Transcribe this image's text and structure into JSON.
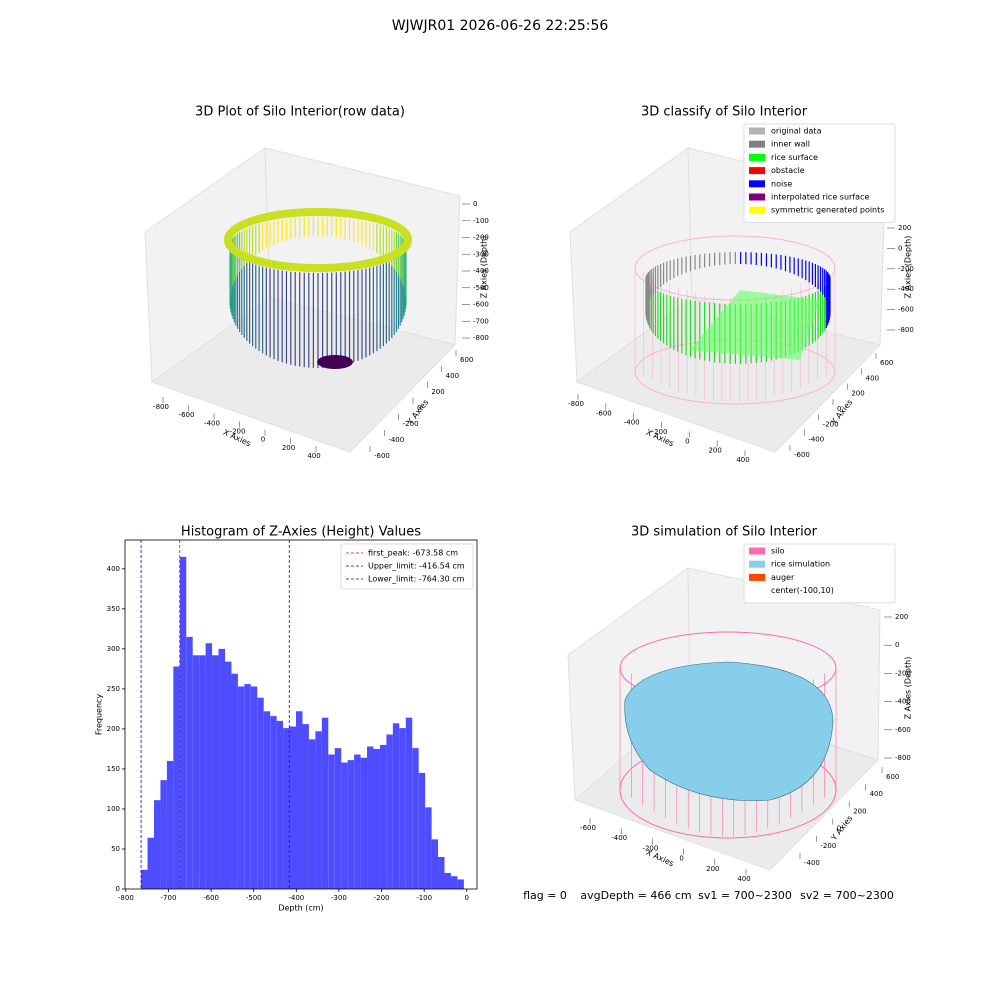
{
  "title": "WJWJR01 2026-06-26 22:25:56",
  "footer": [
    "flag = 0",
    "avgDepth = 466 cm",
    "sv1 = 700~2300",
    "sv2 = 700~2300"
  ],
  "chart_data": [
    {
      "type": "scatter3d",
      "title": "3D Plot of Silo Interior(row data)",
      "xlabel": "X Axies",
      "ylabel": "Y Axies",
      "zlabel": "Z Axies (Depth)",
      "xticks": [
        -800,
        -600,
        -400,
        -200,
        0,
        200,
        400
      ],
      "yticks": [
        -600,
        -400,
        -200,
        0,
        200,
        400,
        600
      ],
      "zticks": [
        0,
        -100,
        -200,
        -300,
        -400,
        -500,
        -600,
        -700,
        -800
      ]
    },
    {
      "type": "scatter3d",
      "title": "3D classify of Silo Interior",
      "xlabel": "X Axies",
      "ylabel": "Y Axies",
      "zlabel": "Z Axies (Depth)",
      "xticks": [
        -800,
        -600,
        -400,
        -200,
        0,
        200,
        400
      ],
      "yticks": [
        -600,
        -400,
        -200,
        0,
        200,
        400,
        600
      ],
      "zticks": [
        200,
        0,
        -200,
        -400,
        -600,
        -800
      ],
      "series": [
        {
          "name": "original data",
          "color": "#b3b3b3"
        },
        {
          "name": "inner wall",
          "color": "#808080"
        },
        {
          "name": "rice surface",
          "color": "#00ff00"
        },
        {
          "name": "obstacle",
          "color": "#ff0000"
        },
        {
          "name": "noise",
          "color": "#0000ff"
        },
        {
          "name": "interpolated rice surface",
          "color": "#800080"
        },
        {
          "name": "symmetric generated points",
          "color": "#ffff00"
        }
      ]
    },
    {
      "type": "histogram",
      "title": "Histogram of Z-Axies (Height) Values",
      "xlabel": "Depth (cm)",
      "ylabel": "Frequency",
      "color": "#4d4dff",
      "bins": [
        -764.3,
        -749.15,
        -734.0,
        -718.85,
        -703.7,
        -688.55,
        -673.4,
        -658.25,
        -643.1,
        -627.95,
        -612.8,
        -597.65,
        -582.5,
        -567.35,
        -552.2,
        -537.05,
        -521.9,
        -506.75,
        -491.6,
        -476.45,
        -461.3,
        -446.15,
        -431.0,
        -415.85,
        -400.7,
        -385.55,
        -370.4,
        -355.25,
        -340.1,
        -324.95,
        -309.8,
        -294.65,
        -279.5,
        -264.35,
        -249.2,
        -234.05,
        -218.9,
        -203.75,
        -188.6,
        -173.45,
        -158.3,
        -143.15,
        -128.0,
        -112.85,
        -97.7,
        -82.55,
        -67.4,
        -52.25,
        -37.1,
        -21.95,
        -6.8
      ],
      "values": [
        24,
        64,
        111,
        136,
        160,
        278,
        415,
        315,
        292,
        292,
        307,
        292,
        300,
        284,
        269,
        253,
        256,
        253,
        239,
        222,
        216,
        210,
        201,
        203,
        222,
        206,
        187,
        197,
        214,
        168,
        176,
        158,
        161,
        168,
        164,
        178,
        175,
        180,
        193,
        207,
        201,
        214,
        176,
        145,
        102,
        62,
        40,
        20,
        16,
        12
      ],
      "xlim": [
        -802,
        24
      ],
      "ylim": [
        0,
        436
      ],
      "xticks": [
        -800,
        -700,
        -600,
        -500,
        -400,
        -300,
        -200,
        -100,
        0
      ],
      "yticks": [
        0,
        50,
        100,
        150,
        200,
        250,
        300,
        350,
        400
      ],
      "vlines": [
        {
          "name": "first_peak: -673.58 cm",
          "value": -673.58,
          "color": "#ff0000"
        },
        {
          "name": "Upper_limit: -416.54 cm",
          "value": -416.54,
          "color": "#0000ff"
        },
        {
          "name": "Lower_limit: -764.30 cm",
          "value": -764.3,
          "color": "#0000ff"
        }
      ],
      "legend": "upper right"
    },
    {
      "type": "surface3d",
      "title": "3D simulation of Silo Interior",
      "xlabel": "X Axies",
      "ylabel": "Y Axies",
      "zlabel": "Z Axies (Depth)",
      "xticks": [
        -600,
        -400,
        -200,
        0,
        200,
        400
      ],
      "yticks": [
        -400,
        -200,
        0,
        200,
        400,
        600
      ],
      "zticks": [
        200,
        0,
        -200,
        -400,
        -600,
        -800
      ],
      "series": [
        {
          "name": "silo",
          "color": "#ff69b4"
        },
        {
          "name": "rice simulation",
          "color": "#87ceeb"
        },
        {
          "name": "auger",
          "color": "#ff4500"
        },
        {
          "name": "center(-100,10)",
          "color": "#ffffff"
        }
      ]
    }
  ]
}
